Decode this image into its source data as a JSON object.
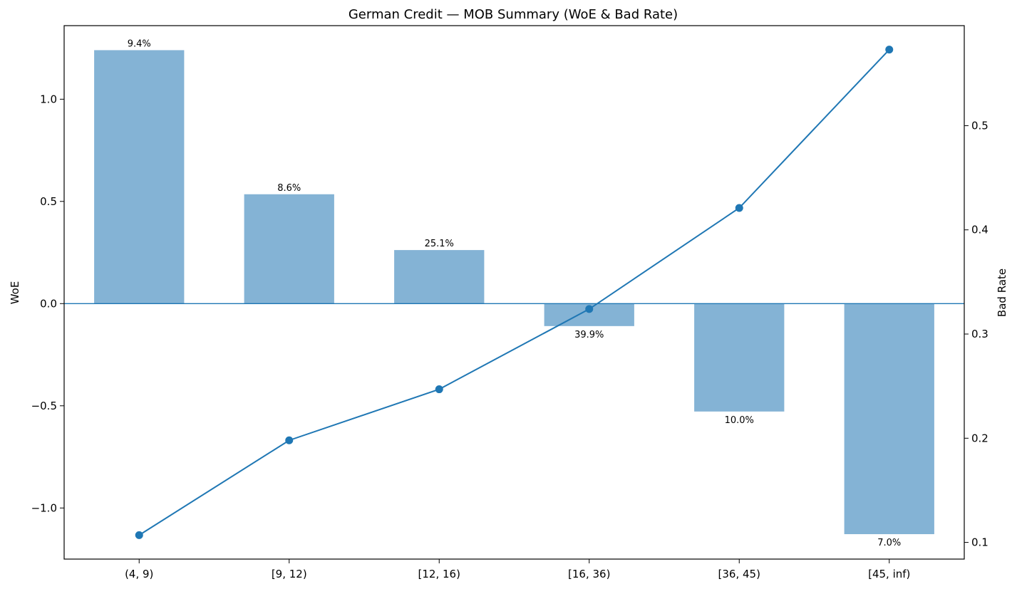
{
  "chart_data": {
    "type": "bar",
    "title": "German Credit — MOB Summary (WoE & Bad Rate)",
    "xlabel": "",
    "ylabel": "WoE",
    "y2label": "Bad Rate",
    "categories": [
      "(4, 9)",
      "[9, 12)",
      "[12, 16)",
      "[16, 36)",
      "[36, 45)",
      "[45, inf)"
    ],
    "series": [
      {
        "name": "WoE",
        "type": "bar",
        "axis": "left",
        "values": [
          1.24,
          0.535,
          0.262,
          -0.11,
          -0.528,
          -1.128
        ],
        "labels": [
          "9.4%",
          "8.6%",
          "25.1%",
          "39.9%",
          "10.0%",
          "7.0%"
        ],
        "color": "#84b3d5"
      },
      {
        "name": "Bad Rate",
        "type": "line",
        "axis": "right",
        "values": [
          0.107,
          0.198,
          0.247,
          0.324,
          0.421,
          0.573
        ],
        "color": "#1f77b4"
      }
    ],
    "ylim": [
      -1.25,
      1.36
    ],
    "y2lim": [
      0.084,
      0.596
    ],
    "yticks": [
      -1.0,
      -0.5,
      0.0,
      0.5,
      1.0
    ],
    "ytick_labels": [
      "−1.0",
      "−0.5",
      "0.0",
      "0.5",
      "1.0"
    ],
    "y2ticks": [
      0.1,
      0.2,
      0.3,
      0.4,
      0.5
    ],
    "y2tick_labels": [
      "0.1",
      "0.2",
      "0.3",
      "0.4",
      "0.5"
    ],
    "zero_line_color": "#1f77b4",
    "grid": false
  }
}
